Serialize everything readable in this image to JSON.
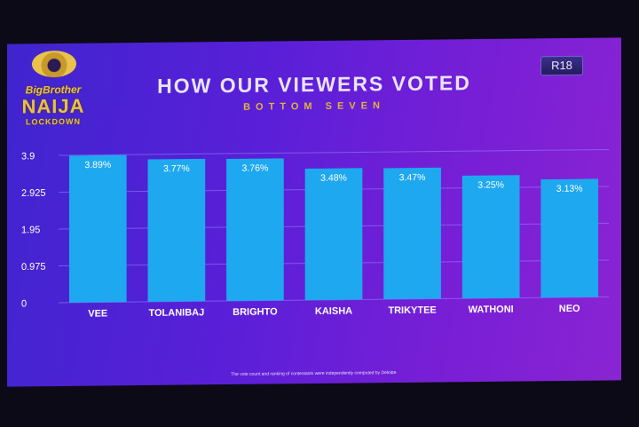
{
  "header": {
    "logo_line1": "BigBrother",
    "logo_line2": "NAIJA",
    "logo_line3": "LOCKDOWN",
    "rating_badge": "R18",
    "title": "HOW OUR VIEWERS VOTED",
    "subtitle": "BOTTOM SEVEN"
  },
  "footnote": "The vote count and ranking of contestants were independently computed by Deloitte.",
  "colors": {
    "bar": "#1ea8f0",
    "gridline": "#9a86ff",
    "axis_text": "#ffffff",
    "label_text": "#ffffff"
  },
  "chart_data": {
    "type": "bar",
    "categories": [
      "VEE",
      "TOLANIBAJ",
      "BRIGHTO",
      "KAISHA",
      "TRIKYTEE",
      "WATHONI",
      "NEO"
    ],
    "values": [
      3.89,
      3.77,
      3.76,
      3.48,
      3.47,
      3.25,
      3.13
    ],
    "data_labels": [
      "3.89%",
      "3.77%",
      "3.76%",
      "3.48%",
      "3.47%",
      "3.25%",
      "3.13%"
    ],
    "ylim": [
      0,
      3.9
    ],
    "yticks": [
      0,
      0.975,
      1.95,
      2.925,
      3.9
    ],
    "ytick_labels": [
      "0",
      "0.975",
      "1.95",
      "2.925",
      "3.9"
    ],
    "grid": true,
    "legend": "none"
  }
}
